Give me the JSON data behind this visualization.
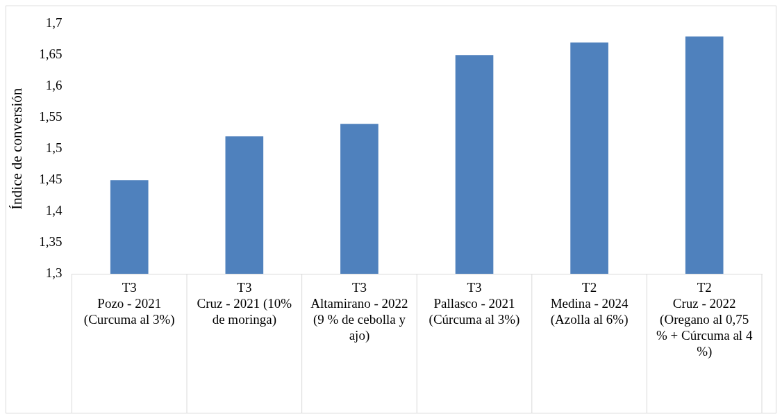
{
  "chart_data": {
    "type": "bar",
    "ylabel": "Índice de conversión",
    "categories": [
      "T3\nPozo - 2021 (Curcuma al 3%)",
      "T3\nCruz - 2021 (10% de moringa)",
      "T3\nAltamirano - 2022 (9 % de cebolla y ajo)",
      "T3\nPallasco - 2021 (Cúrcuma al 3%)",
      "T2\nMedina - 2024 (Azolla al 6%)",
      "T2\nCruz - 2022 (Oregano al 0,75 % + Cúrcuma al 4 %)"
    ],
    "values": [
      1.45,
      1.52,
      1.54,
      1.65,
      1.67,
      1.68
    ],
    "color": "#4f81bd",
    "ylim": [
      1.3,
      1.7
    ],
    "yticks": [
      {
        "value": 1.3,
        "label": "1,3"
      },
      {
        "value": 1.35,
        "label": "1,35"
      },
      {
        "value": 1.4,
        "label": "1,4"
      },
      {
        "value": 1.45,
        "label": "1,45"
      },
      {
        "value": 1.5,
        "label": "1,5"
      },
      {
        "value": 1.55,
        "label": "1,55"
      },
      {
        "value": 1.6,
        "label": "1,6"
      },
      {
        "value": 1.65,
        "label": "1,65"
      },
      {
        "value": 1.7,
        "label": "1,7"
      }
    ],
    "grid": false
  }
}
